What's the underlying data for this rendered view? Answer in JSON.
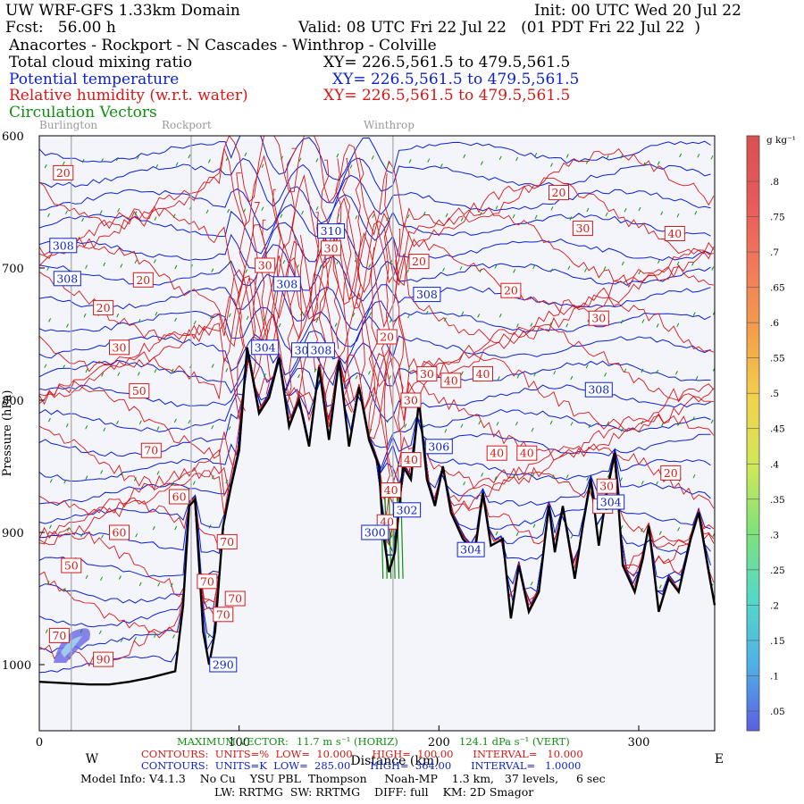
{
  "header": {
    "title": "UW WRF-GFS 1.33km Domain",
    "init": "Init: 00 UTC Wed 20 Jul 22",
    "fcst": "Fcst:   56.00 h",
    "valid": "Valid: 08 UTC Fri 22 Jul 22   (01 PDT Fri 22 Jul 22  )",
    "route": "Anacortes - Rockport - N Cascades - Winthrop - Colville",
    "field1": "Total cloud mixing ratio",
    "xy1": "XY= 226.5,561.5 to 479.5,561.5",
    "field2": "Potential temperature",
    "xy2": "XY= 226.5,561.5 to 479.5,561.5",
    "field3": "Relative humidity (w.r.t. water)",
    "xy3": "XY= 226.5,561.5 to 479.5,561.5",
    "field4": "Circulation Vectors"
  },
  "cities": [
    "Burlington",
    "Rockport",
    "Winthrop"
  ],
  "footer": {
    "maxvec_label": "MAXIMUM VECTOR:",
    "maxvec_h": "11.7 m s⁻¹ (HORIZ)",
    "maxvec_v": "124.1 dPa s⁻¹ (VERT)",
    "rh_line": "CONTOURS:  UNITS=%  LOW=  10.000      HIGH=  100.00      INTERVAL=   10.000",
    "th_line": "CONTOURS:  UNITS=K  LOW=  285.00      HIGH=  364.00      INTERVAL=   1.0000",
    "model_line": "Model Info: V4.1.3    No Cu    YSU PBL  Thompson     Noah-MP    1.3 km,   37 levels,     6 sec",
    "model_line2": "LW: RRTMG  SW: RRTMG    DIFF: full    KM: 2D Smagor"
  },
  "colors": {
    "theta": "#0a1fd6",
    "rh": "#d81818",
    "vectors": "#0f8f0f",
    "terrain": "#000000",
    "plot_bg": "#f4f4fb"
  },
  "chart_data": {
    "type": "cross-section",
    "xlabel": "Distance (km)",
    "ylabel": "Pressure (hPa)",
    "x_range": [
      0,
      338
    ],
    "y_range_hPa": [
      600,
      1050
    ],
    "x_ticks": [
      0,
      100,
      200,
      300
    ],
    "x_tick_labels": [
      "0",
      "100",
      "200",
      "300"
    ],
    "y_ticks": [
      600,
      700,
      800,
      900,
      1000
    ],
    "y_tick_labels": [
      "600",
      "700",
      "800",
      "900",
      "1000"
    ],
    "x_end_labels": [
      "W",
      "E"
    ],
    "city_marks": [
      {
        "name": "Burlington",
        "km": 16
      },
      {
        "name": "Rockport",
        "km": 76
      },
      {
        "name": "Winthrop",
        "km": 177
      }
    ],
    "terrain_km_hPa": [
      [
        0,
        1013
      ],
      [
        25,
        1015
      ],
      [
        35,
        1015
      ],
      [
        45,
        1013
      ],
      [
        55,
        1010
      ],
      [
        68,
        1005
      ],
      [
        72,
        955
      ],
      [
        75,
        880
      ],
      [
        78,
        875
      ],
      [
        82,
        975
      ],
      [
        85,
        1000
      ],
      [
        88,
        975
      ],
      [
        92,
        895
      ],
      [
        96,
        865
      ],
      [
        100,
        838
      ],
      [
        104,
        760
      ],
      [
        110,
        810
      ],
      [
        115,
        798
      ],
      [
        120,
        768
      ],
      [
        125,
        820
      ],
      [
        130,
        800
      ],
      [
        135,
        835
      ],
      [
        140,
        775
      ],
      [
        145,
        830
      ],
      [
        150,
        770
      ],
      [
        155,
        835
      ],
      [
        160,
        790
      ],
      [
        165,
        830
      ],
      [
        170,
        850
      ],
      [
        172,
        900
      ],
      [
        175,
        930
      ],
      [
        178,
        915
      ],
      [
        182,
        850
      ],
      [
        186,
        860
      ],
      [
        190,
        800
      ],
      [
        194,
        860
      ],
      [
        198,
        880
      ],
      [
        202,
        850
      ],
      [
        206,
        885
      ],
      [
        212,
        905
      ],
      [
        218,
        915
      ],
      [
        222,
        870
      ],
      [
        226,
        910
      ],
      [
        232,
        905
      ],
      [
        236,
        965
      ],
      [
        240,
        925
      ],
      [
        245,
        960
      ],
      [
        250,
        945
      ],
      [
        255,
        880
      ],
      [
        258,
        915
      ],
      [
        262,
        880
      ],
      [
        268,
        935
      ],
      [
        272,
        895
      ],
      [
        276,
        860
      ],
      [
        280,
        910
      ],
      [
        284,
        870
      ],
      [
        288,
        840
      ],
      [
        292,
        925
      ],
      [
        298,
        945
      ],
      [
        302,
        920
      ],
      [
        305,
        895
      ],
      [
        310,
        960
      ],
      [
        315,
        935
      ],
      [
        320,
        945
      ],
      [
        326,
        905
      ],
      [
        330,
        885
      ],
      [
        335,
        930
      ],
      [
        338,
        955
      ]
    ],
    "rh_labels": [
      {
        "text": "20",
        "km": 12,
        "hPa": 628
      },
      {
        "text": "20",
        "km": 52,
        "hPa": 709
      },
      {
        "text": "20",
        "km": 32,
        "hPa": 730
      },
      {
        "text": "30",
        "km": 40,
        "hPa": 760
      },
      {
        "text": "50",
        "km": 50,
        "hPa": 793
      },
      {
        "text": "70",
        "km": 56,
        "hPa": 838
      },
      {
        "text": "60",
        "km": 70,
        "hPa": 873
      },
      {
        "text": "60",
        "km": 40,
        "hPa": 900
      },
      {
        "text": "50",
        "km": 16,
        "hPa": 925
      },
      {
        "text": "70",
        "km": 10,
        "hPa": 978
      },
      {
        "text": "90",
        "km": 32,
        "hPa": 996
      },
      {
        "text": "70",
        "km": 94,
        "hPa": 907
      },
      {
        "text": "70",
        "km": 84,
        "hPa": 937
      },
      {
        "text": "70",
        "km": 98,
        "hPa": 950
      },
      {
        "text": "70",
        "km": 92,
        "hPa": 962
      },
      {
        "text": "30",
        "km": 113,
        "hPa": 698
      },
      {
        "text": "30",
        "km": 146,
        "hPa": 685
      },
      {
        "text": "20",
        "km": 174,
        "hPa": 752
      },
      {
        "text": "20",
        "km": 190,
        "hPa": 695
      },
      {
        "text": "30",
        "km": 194,
        "hPa": 780
      },
      {
        "text": "30",
        "km": 186,
        "hPa": 800
      },
      {
        "text": "40",
        "km": 206,
        "hPa": 785
      },
      {
        "text": "40",
        "km": 222,
        "hPa": 780
      },
      {
        "text": "40",
        "km": 186,
        "hPa": 845
      },
      {
        "text": "40",
        "km": 176,
        "hPa": 868
      },
      {
        "text": "40",
        "km": 174,
        "hPa": 892
      },
      {
        "text": "20",
        "km": 236,
        "hPa": 717
      },
      {
        "text": "40",
        "km": 229,
        "hPa": 840
      },
      {
        "text": "40",
        "km": 244,
        "hPa": 840
      },
      {
        "text": "30",
        "km": 280,
        "hPa": 738
      },
      {
        "text": "30",
        "km": 272,
        "hPa": 670
      },
      {
        "text": "20",
        "km": 260,
        "hPa": 643
      },
      {
        "text": "40",
        "km": 318,
        "hPa": 674
      },
      {
        "text": "20",
        "km": 316,
        "hPa": 855
      },
      {
        "text": "30",
        "km": 284,
        "hPa": 865
      },
      {
        "text": "30",
        "km": 282,
        "hPa": 880
      }
    ],
    "theta_labels": [
      {
        "text": "308",
        "km": 12,
        "hPa": 683
      },
      {
        "text": "308",
        "km": 14,
        "hPa": 708
      },
      {
        "text": "310",
        "km": 146,
        "hPa": 672
      },
      {
        "text": "308",
        "km": 124,
        "hPa": 712
      },
      {
        "text": "308",
        "km": 194,
        "hPa": 720
      },
      {
        "text": "304",
        "km": 113,
        "hPa": 760
      },
      {
        "text": "306",
        "km": 133,
        "hPa": 762
      },
      {
        "text": "308",
        "km": 141,
        "hPa": 762
      },
      {
        "text": "308",
        "km": 280,
        "hPa": 792
      },
      {
        "text": "306",
        "km": 200,
        "hPa": 835
      },
      {
        "text": "304",
        "km": 286,
        "hPa": 877
      },
      {
        "text": "302",
        "km": 184,
        "hPa": 883
      },
      {
        "text": "300",
        "km": 168,
        "hPa": 900
      },
      {
        "text": "304",
        "km": 216,
        "hPa": 913
      },
      {
        "text": "290",
        "km": 92,
        "hPa": 1000
      }
    ],
    "colorbar": {
      "title": "g kg⁻¹",
      "ticks": [
        ".05",
        ".1",
        ".15",
        ".2",
        ".25",
        ".3",
        ".35",
        ".4",
        ".45",
        ".5",
        ".55",
        ".6",
        ".65",
        ".7",
        ".75",
        ".8"
      ],
      "gradient": [
        "#5a5fe0",
        "#4fb1e8",
        "#55d8c8",
        "#7ee27a",
        "#cfe85a",
        "#f3d24d",
        "#f4a04a",
        "#f27a5a",
        "#e85a5a",
        "#d85050"
      ]
    }
  }
}
